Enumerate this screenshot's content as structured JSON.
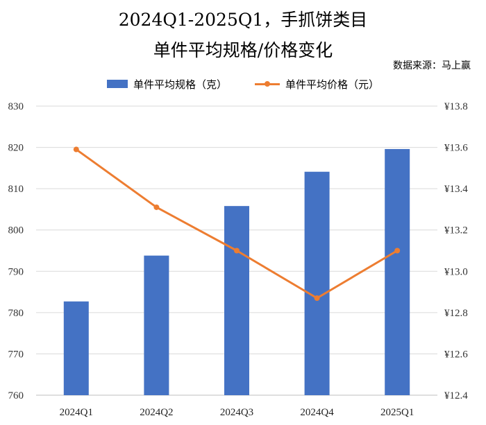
{
  "header": {
    "title_line1": "2024Q1-2025Q1，手抓饼类目",
    "title_line2": "单件平均规格/价格变化",
    "source": "数据来源：马上赢"
  },
  "colors": {
    "bar": "#4472C4",
    "line": "#ED7D31",
    "grid": "#D9D9D9"
  },
  "chart_data": {
    "type": "bar",
    "title": "2024Q1-2025Q1，手抓饼类目 单件平均规格/价格变化",
    "categories": [
      "2024Q1",
      "2024Q2",
      "2024Q3",
      "2024Q4",
      "2025Q1"
    ],
    "series": [
      {
        "name": "单件平均规格（克）",
        "type": "bar",
        "axis": "left",
        "values": [
          782.7,
          793.8,
          805.8,
          814.1,
          819.6
        ]
      },
      {
        "name": "单件平均价格（元）",
        "type": "line",
        "axis": "right",
        "values": [
          13.59,
          13.31,
          13.1,
          12.87,
          13.1
        ]
      }
    ],
    "y_left": {
      "min": 760,
      "max": 830,
      "step": 10,
      "ticks": [
        "760",
        "770",
        "780",
        "790",
        "800",
        "810",
        "820",
        "830"
      ]
    },
    "y_right": {
      "min": 12.4,
      "max": 13.8,
      "step": 0.2,
      "ticks": [
        "¥12.4",
        "¥12.6",
        "¥12.8",
        "¥13.0",
        "¥13.2",
        "¥13.4",
        "¥13.6",
        "¥13.8"
      ]
    },
    "grid": true,
    "legend": "top"
  }
}
